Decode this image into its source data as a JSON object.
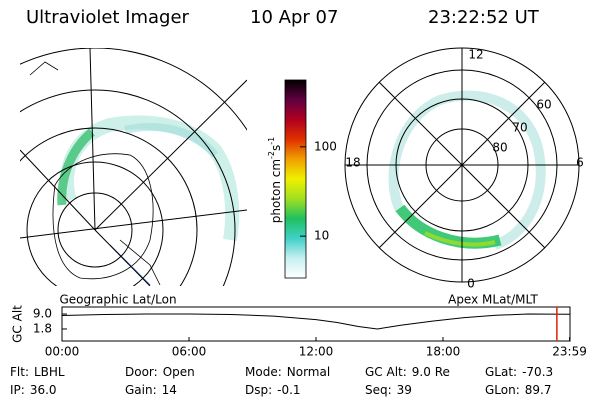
{
  "header": {
    "title": "Ultraviolet Imager",
    "date": "10 Apr 07",
    "time": "23:22:52 UT"
  },
  "map": {
    "title": "Geographic Lat/Lon"
  },
  "polar": {
    "title": "Apex MLat/MLT",
    "mlt_labels": [
      "12",
      "6",
      "0",
      "18"
    ],
    "mlat_labels": [
      "60",
      "70",
      "80"
    ]
  },
  "colorbar": {
    "label": {
      "base": "photon cm",
      "exp1": "-2",
      "unit2": "s",
      "exp2": "-1"
    },
    "scale": "log",
    "lim": [
      3.4,
      560
    ],
    "ticks": [
      10,
      100
    ],
    "colors": [
      "#ffffff",
      "#c8f0f0",
      "#40d0c8",
      "#20c060",
      "#a0e020",
      "#f0f000",
      "#f0a000",
      "#e03000",
      "#b00020",
      "#600040",
      "#000000"
    ]
  },
  "chart_data": {
    "type": "line",
    "ylabel": "GC Alt",
    "x": [
      0,
      2,
      4,
      6,
      8,
      10,
      12,
      13,
      14,
      14.9,
      16,
      17.5,
      19,
      20.5,
      22,
      24
    ],
    "series": [
      {
        "name": "GC Alt",
        "color": "#000000",
        "values": [
          8.3,
          8.8,
          9.0,
          9.0,
          8.8,
          8.0,
          6.3,
          4.9,
          3.0,
          1.8,
          3.6,
          5.6,
          7.3,
          8.4,
          9.0,
          8.9
        ]
      }
    ],
    "current_time": 23.38,
    "current_color": "#e02000",
    "xlim": [
      0,
      24
    ],
    "ylim": [
      -4,
      12.4
    ],
    "xticks": [
      {
        "value": 0,
        "label": "00:00"
      },
      {
        "value": 6,
        "label": "06:00"
      },
      {
        "value": 12,
        "label": "12:00"
      },
      {
        "value": 18,
        "label": "18:00"
      },
      {
        "value": 23.98,
        "label": "23:59"
      }
    ],
    "yticks": [
      1.8,
      {
        "value": 9,
        "label": "9.0"
      }
    ]
  },
  "info": [
    [
      {
        "label": "Flt:",
        "value": "LBHL"
      },
      {
        "label": "IP:",
        "value": "36.0"
      }
    ],
    [
      {
        "label": "Door:",
        "value": "Open"
      },
      {
        "label": "Gain:",
        "value": "14"
      }
    ],
    [
      {
        "label": "Mode:",
        "value": "Normal"
      },
      {
        "label": "Dsp:",
        "value": "-0.1"
      }
    ],
    [
      {
        "label": "GC Alt:",
        "value": "9.0 Re"
      },
      {
        "label": "Seq:",
        "value": "39"
      }
    ],
    [
      {
        "label": "GLat:",
        "value": "-70.3"
      },
      {
        "label": "GLon:",
        "value": "89.7"
      }
    ]
  ]
}
